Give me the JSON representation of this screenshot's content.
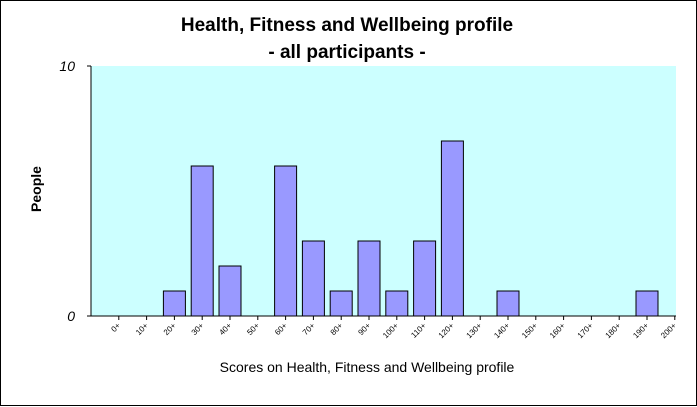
{
  "chart_data": {
    "type": "bar",
    "title_line1": "Health, Fitness and Wellbeing profile",
    "title_line2": "- all participants -",
    "xlabel": "Scores on Health, Fitness and Wellbeing profile",
    "ylabel": "People",
    "ylim": [
      0,
      10
    ],
    "yticks": [
      "0",
      "10"
    ],
    "categories": [
      "0+",
      "10+",
      "20+",
      "30+",
      "40+",
      "50+",
      "60+",
      "70+",
      "80+",
      "90+",
      "100+",
      "110+",
      "120+",
      "130+",
      "140+",
      "150+",
      "160+",
      "170+",
      "180+",
      "190+",
      "200+"
    ],
    "values": [
      0,
      0,
      1,
      6,
      2,
      0,
      6,
      3,
      1,
      3,
      1,
      3,
      7,
      0,
      1,
      0,
      0,
      0,
      0,
      1,
      0
    ],
    "colors": {
      "plot_background": "#ccffff",
      "bar_fill": "#9999ff",
      "bar_stroke": "#000000",
      "axis": "#000000"
    },
    "grid": false,
    "legend": "none"
  }
}
